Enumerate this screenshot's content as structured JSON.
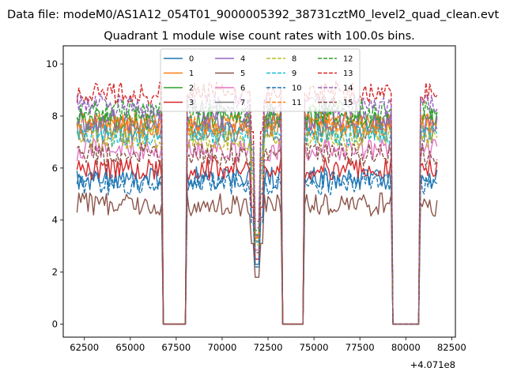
{
  "figure": {
    "suptitle": "Data file: modeM0/AS1A12_054T01_9000005392_38731cztM0_level2_quad_clean.evt"
  },
  "chart_data": {
    "type": "line",
    "title": "Quadrant 1 module wise count rates with 100.0s bins.",
    "xlabel": "",
    "ylabel": "",
    "x_offset_label": "+4.071e8",
    "x_offset": 407100000,
    "xlim": [
      407161350,
      407182700
    ],
    "ylim": [
      -0.5,
      10.7
    ],
    "grid": false,
    "legend": {
      "placement": "top-center",
      "ncol": 4
    },
    "xticks": [
      62500,
      65000,
      67500,
      70000,
      72500,
      75000,
      77500,
      80000,
      82500
    ],
    "xtick_labels": [
      "62500",
      "65000",
      "67500",
      "70000",
      "72500",
      "75000",
      "77500",
      "80000",
      "82500"
    ],
    "yticks": [
      0,
      2,
      4,
      6,
      8,
      10
    ],
    "ytick_labels": [
      "0",
      "2",
      "4",
      "6",
      "8",
      "10"
    ],
    "segments": [
      {
        "start": 407162100,
        "end": 407166700,
        "state": "on"
      },
      {
        "start": 407166800,
        "end": 407168000,
        "state": "gap"
      },
      {
        "start": 407168100,
        "end": 407173200,
        "state": "on",
        "dip_at": 407171900
      },
      {
        "start": 407173300,
        "end": 407174400,
        "state": "gap"
      },
      {
        "start": 407174500,
        "end": 407179200,
        "state": "on"
      },
      {
        "start": 407179300,
        "end": 407180700,
        "state": "gap"
      },
      {
        "start": 407180800,
        "end": 407181700,
        "state": "on"
      }
    ],
    "series": [
      {
        "name": "0",
        "color": "#1f77b4",
        "style": "solid",
        "base": 5.6
      },
      {
        "name": "1",
        "color": "#ff7f0e",
        "style": "solid",
        "base": 7.6
      },
      {
        "name": "2",
        "color": "#2ca02c",
        "style": "solid",
        "base": 7.9
      },
      {
        "name": "3",
        "color": "#d62728",
        "style": "solid",
        "base": 6.0
      },
      {
        "name": "4",
        "color": "#9467bd",
        "style": "solid",
        "base": 7.8
      },
      {
        "name": "5",
        "color": "#8c564b",
        "style": "solid",
        "base": 4.6
      },
      {
        "name": "6",
        "color": "#e377c2",
        "style": "solid",
        "base": 6.7
      },
      {
        "name": "7",
        "color": "#7f7f7f",
        "style": "solid",
        "base": 7.4
      },
      {
        "name": "8",
        "color": "#bcbd22",
        "style": "dashed",
        "base": 7.1
      },
      {
        "name": "9",
        "color": "#17becf",
        "style": "dashed",
        "base": 7.3
      },
      {
        "name": "10",
        "color": "#1f77b4",
        "style": "dashed",
        "base": 5.4
      },
      {
        "name": "11",
        "color": "#ff7f0e",
        "style": "dashed",
        "base": 7.7
      },
      {
        "name": "12",
        "color": "#2ca02c",
        "style": "dashed",
        "base": 8.2
      },
      {
        "name": "13",
        "color": "#d62728",
        "style": "dashed",
        "base": 8.9
      },
      {
        "name": "14",
        "color": "#9467bd",
        "style": "dashed",
        "base": 8.4
      },
      {
        "name": "15",
        "color": "#8c564b",
        "style": "dashed",
        "base": 6.5
      }
    ]
  }
}
